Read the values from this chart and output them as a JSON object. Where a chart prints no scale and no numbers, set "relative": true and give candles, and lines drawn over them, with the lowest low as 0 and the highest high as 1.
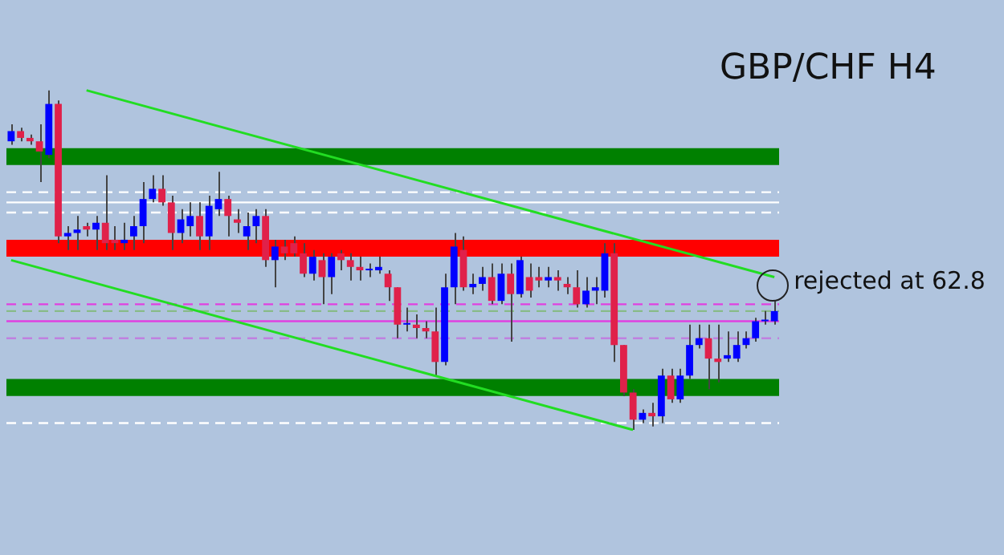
{
  "chart_data": {
    "type": "candlestick",
    "title": "GBP/CHF H4",
    "relative": true,
    "categories": [
      null,
      null,
      null,
      null,
      null,
      null,
      null,
      null,
      null,
      null,
      null,
      null,
      null,
      null,
      null,
      null,
      null,
      null,
      null,
      null,
      null,
      null,
      null,
      null,
      null,
      null,
      null,
      null,
      null,
      null,
      null,
      null,
      null,
      null,
      null,
      null,
      null,
      null,
      null,
      null,
      null,
      null,
      null,
      null,
      null,
      null,
      null,
      null,
      null,
      null,
      null,
      null,
      null,
      null,
      null,
      null,
      null,
      null,
      null,
      null,
      null,
      null,
      null,
      null,
      null,
      null,
      null,
      null,
      null,
      null,
      null,
      null,
      null,
      null,
      null,
      null,
      null,
      null,
      null,
      null,
      null,
      null
    ],
    "ohlc": [
      [
        0.85,
        0.9,
        0.84,
        0.88
      ],
      [
        0.88,
        0.89,
        0.85,
        0.86
      ],
      [
        0.86,
        0.87,
        0.84,
        0.85
      ],
      [
        0.85,
        0.9,
        0.73,
        0.82
      ],
      [
        0.81,
        1.0,
        0.8,
        0.96
      ],
      [
        0.96,
        0.97,
        0.55,
        0.57
      ],
      [
        0.57,
        0.6,
        0.53,
        0.58
      ],
      [
        0.58,
        0.63,
        0.53,
        0.59
      ],
      [
        0.6,
        0.61,
        0.57,
        0.59
      ],
      [
        0.59,
        0.63,
        0.53,
        0.61
      ],
      [
        0.61,
        0.75,
        0.53,
        0.55
      ],
      [
        0.56,
        0.6,
        0.53,
        0.55
      ],
      [
        0.55,
        0.61,
        0.53,
        0.56
      ],
      [
        0.57,
        0.63,
        0.53,
        0.6
      ],
      [
        0.6,
        0.73,
        0.55,
        0.68
      ],
      [
        0.68,
        0.75,
        0.67,
        0.71
      ],
      [
        0.71,
        0.75,
        0.66,
        0.67
      ],
      [
        0.67,
        0.69,
        0.53,
        0.58
      ],
      [
        0.58,
        0.65,
        0.55,
        0.62
      ],
      [
        0.6,
        0.67,
        0.57,
        0.63
      ],
      [
        0.63,
        0.67,
        0.53,
        0.57
      ],
      [
        0.57,
        0.69,
        0.53,
        0.66
      ],
      [
        0.65,
        0.76,
        0.63,
        0.68
      ],
      [
        0.68,
        0.69,
        0.57,
        0.63
      ],
      [
        0.62,
        0.65,
        0.58,
        0.61
      ],
      [
        0.57,
        0.64,
        0.53,
        0.6
      ],
      [
        0.6,
        0.65,
        0.55,
        0.63
      ],
      [
        0.63,
        0.65,
        0.48,
        0.5
      ],
      [
        0.5,
        0.56,
        0.42,
        0.54
      ],
      [
        0.54,
        0.56,
        0.5,
        0.52
      ],
      [
        0.55,
        0.57,
        0.51,
        0.52
      ],
      [
        0.52,
        0.55,
        0.45,
        0.46
      ],
      [
        0.46,
        0.53,
        0.44,
        0.51
      ],
      [
        0.5,
        0.52,
        0.37,
        0.45
      ],
      [
        0.45,
        0.52,
        0.4,
        0.51
      ],
      [
        0.52,
        0.53,
        0.47,
        0.5
      ],
      [
        0.5,
        0.52,
        0.44,
        0.48
      ],
      [
        0.48,
        0.51,
        0.44,
        0.47
      ],
      [
        0.47,
        0.49,
        0.45,
        0.47
      ],
      [
        0.47,
        0.51,
        0.46,
        0.48
      ],
      [
        0.46,
        0.47,
        0.38,
        0.42
      ],
      [
        0.42,
        0.42,
        0.27,
        0.31
      ],
      [
        0.31,
        0.36,
        0.29,
        0.31
      ],
      [
        0.31,
        0.34,
        0.27,
        0.3
      ],
      [
        0.3,
        0.32,
        0.27,
        0.29
      ],
      [
        0.29,
        0.36,
        0.16,
        0.2
      ],
      [
        0.2,
        0.46,
        0.19,
        0.42
      ],
      [
        0.42,
        0.58,
        0.37,
        0.54
      ],
      [
        0.53,
        0.57,
        0.41,
        0.42
      ],
      [
        0.42,
        0.46,
        0.4,
        0.43
      ],
      [
        0.43,
        0.48,
        0.41,
        0.45
      ],
      [
        0.45,
        0.49,
        0.37,
        0.38
      ],
      [
        0.38,
        0.49,
        0.37,
        0.46
      ],
      [
        0.46,
        0.49,
        0.26,
        0.4
      ],
      [
        0.4,
        0.51,
        0.39,
        0.5
      ],
      [
        0.45,
        0.49,
        0.39,
        0.41
      ],
      [
        0.45,
        0.48,
        0.42,
        0.44
      ],
      [
        0.44,
        0.48,
        0.42,
        0.45
      ],
      [
        0.45,
        0.47,
        0.41,
        0.44
      ],
      [
        0.43,
        0.45,
        0.4,
        0.42
      ],
      [
        0.42,
        0.47,
        0.36,
        0.37
      ],
      [
        0.37,
        0.45,
        0.36,
        0.41
      ],
      [
        0.41,
        0.45,
        0.37,
        0.42
      ],
      [
        0.41,
        0.55,
        0.39,
        0.52
      ],
      [
        0.52,
        0.55,
        0.2,
        0.25
      ],
      [
        0.25,
        0.25,
        0.1,
        0.11
      ],
      [
        0.11,
        0.12,
        0.0,
        0.03
      ],
      [
        0.03,
        0.06,
        0.02,
        0.05
      ],
      [
        0.05,
        0.08,
        0.01,
        0.04
      ],
      [
        0.04,
        0.18,
        0.02,
        0.16
      ],
      [
        0.16,
        0.18,
        0.08,
        0.09
      ],
      [
        0.09,
        0.18,
        0.08,
        0.16
      ],
      [
        0.16,
        0.31,
        0.15,
        0.25
      ],
      [
        0.25,
        0.31,
        0.24,
        0.27
      ],
      [
        0.27,
        0.31,
        0.12,
        0.21
      ],
      [
        0.21,
        0.31,
        0.14,
        0.2
      ],
      [
        0.21,
        0.29,
        0.2,
        0.22
      ],
      [
        0.21,
        0.29,
        0.2,
        0.25
      ],
      [
        0.25,
        0.29,
        0.24,
        0.27
      ],
      [
        0.27,
        0.33,
        0.26,
        0.32
      ],
      [
        0.32,
        0.35,
        0.31,
        0.32
      ],
      [
        0.32,
        0.38,
        0.31,
        0.35
      ]
    ],
    "series": [
      {
        "type": "line",
        "color": "#22dd22",
        "values": [
          null,
          null,
          null,
          null,
          null,
          null,
          null,
          null,
          1.0,
          null,
          null,
          null,
          null,
          null,
          null,
          null,
          null,
          null,
          null,
          null,
          null,
          null,
          null,
          null,
          null,
          null,
          null,
          null,
          null,
          null,
          null,
          null,
          null,
          null,
          null,
          null,
          null,
          null,
          null,
          null,
          null,
          null,
          null,
          null,
          null,
          null,
          null,
          null,
          null,
          null,
          null,
          null,
          null,
          null,
          null,
          null,
          null,
          null,
          null,
          null,
          null,
          null,
          null,
          null,
          null,
          null,
          null,
          null,
          null,
          null,
          null,
          null,
          null,
          null,
          null,
          null,
          null,
          null,
          null,
          null,
          null,
          0.45
        ]
      },
      {
        "type": "line",
        "color": "#22dd22",
        "values": [
          0.5,
          null,
          null,
          null,
          null,
          null,
          null,
          null,
          null,
          null,
          null,
          null,
          null,
          null,
          null,
          null,
          null,
          null,
          null,
          null,
          null,
          null,
          null,
          null,
          null,
          null,
          null,
          null,
          null,
          null,
          null,
          null,
          null,
          null,
          null,
          null,
          null,
          null,
          null,
          null,
          null,
          null,
          null,
          null,
          null,
          null,
          null,
          null,
          null,
          null,
          null,
          null,
          null,
          null,
          null,
          null,
          null,
          null,
          null,
          null,
          null,
          null,
          null,
          null,
          null,
          null,
          0.0,
          null,
          null,
          null,
          null,
          null,
          null,
          null,
          null,
          null,
          null,
          null,
          null,
          null,
          null,
          null
        ]
      }
    ],
    "bands": [
      {
        "axis": "y",
        "from": 0.78,
        "to": 0.83,
        "color": "#008000"
      },
      {
        "axis": "y",
        "from": 0.51,
        "to": 0.56,
        "color": "#ff0000"
      },
      {
        "axis": "y",
        "from": 0.1,
        "to": 0.15,
        "color": "#008000"
      }
    ],
    "ref_lines": [
      {
        "axis": "y",
        "value": 0.7,
        "color": "#ffffff",
        "line_style": "dashed"
      },
      {
        "axis": "y",
        "value": 0.67,
        "color": "#ffffff",
        "line_style": "solid"
      },
      {
        "axis": "y",
        "value": 0.64,
        "color": "#ffffff",
        "line_style": "dashed"
      },
      {
        "axis": "y",
        "value": 0.37,
        "color": "#e040e0",
        "line_style": "dashed"
      },
      {
        "axis": "y",
        "value": 0.35,
        "color": "#88bb88",
        "line_style": "dashed"
      },
      {
        "axis": "y",
        "value": 0.32,
        "color": "#e040e0",
        "line_style": "solid"
      },
      {
        "axis": "y",
        "value": 0.27,
        "color": "#c080e0",
        "line_style": "dashed"
      },
      {
        "axis": "y",
        "value": 0.02,
        "color": "#ffffff",
        "line_style": "dashed"
      }
    ],
    "annotations": [
      "rejected at 62.8"
    ],
    "legend": false,
    "grid": false
  }
}
